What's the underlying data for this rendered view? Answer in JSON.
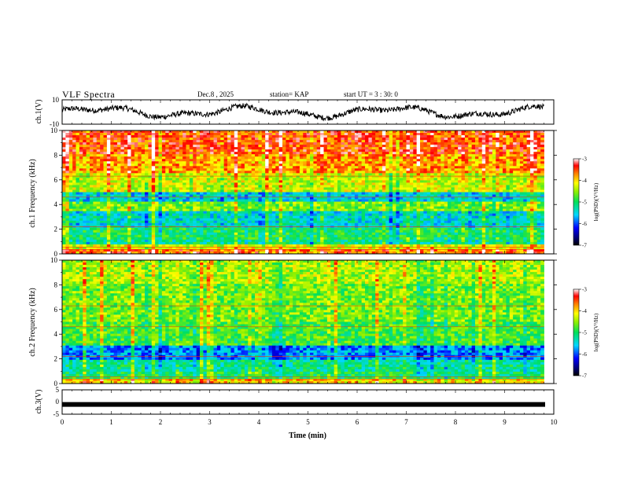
{
  "header": {
    "title": "VLF Spectra",
    "date": "Dec.8 , 2025",
    "station": "station= KAP",
    "start_ut": "start UT = 3 : 30: 0"
  },
  "chart_data": [
    {
      "type": "line",
      "name": "ch1-waveform",
      "ylabel": "ch.1(V)",
      "ylim": [
        -10,
        10
      ],
      "yticks": [
        "10",
        "-10"
      ],
      "xlim": [
        0,
        10
      ],
      "description_series": "noisy waveform around 0 V"
    },
    {
      "type": "heatmap",
      "name": "ch1-spectrogram",
      "ylabel": "ch.1 Frequency (kHz)",
      "ylim": [
        0,
        10
      ],
      "yticks": [
        "0",
        "2",
        "4",
        "6",
        "8",
        "10"
      ],
      "xlim": [
        0,
        9.8
      ],
      "colorbar": {
        "label": "log(PSD)(V²/Hz)",
        "ticks": [
          "-3",
          "-4",
          "-5",
          "-6",
          "-7"
        ],
        "range": [
          -7,
          -3
        ]
      },
      "bands": [
        {
          "from": 0.0,
          "to": 0.3,
          "level": -3.6
        },
        {
          "from": 0.3,
          "to": 0.7,
          "level": -4.2
        },
        {
          "from": 0.7,
          "to": 1.2,
          "level": -5.2
        },
        {
          "from": 1.2,
          "to": 2.2,
          "level": -5.0
        },
        {
          "from": 2.2,
          "to": 3.5,
          "level": -5.4
        },
        {
          "from": 3.5,
          "to": 4.2,
          "level": -4.6
        },
        {
          "from": 4.2,
          "to": 5.0,
          "level": -5.5
        },
        {
          "from": 5.0,
          "to": 6.5,
          "level": -4.3
        },
        {
          "from": 6.5,
          "to": 8.0,
          "level": -3.8
        },
        {
          "from": 8.0,
          "to": 10.0,
          "level": -3.5
        }
      ]
    },
    {
      "type": "heatmap",
      "name": "ch2-spectrogram",
      "ylabel": "ch.2 Frequency (kHz)",
      "ylim": [
        0,
        10
      ],
      "yticks": [
        "0",
        "2",
        "4",
        "6",
        "8",
        "10"
      ],
      "xlim": [
        0,
        9.8
      ],
      "colorbar": {
        "label": "log(PSD)(V²/Hz)",
        "ticks": [
          "-3",
          "-4",
          "-5",
          "-6",
          "-7"
        ],
        "range": [
          -7,
          -3
        ]
      },
      "bands": [
        {
          "from": 0.0,
          "to": 0.4,
          "level": -4.0
        },
        {
          "from": 0.4,
          "to": 1.0,
          "level": -5.0
        },
        {
          "from": 1.0,
          "to": 2.0,
          "level": -5.2
        },
        {
          "from": 2.0,
          "to": 3.0,
          "level": -5.8
        },
        {
          "from": 3.0,
          "to": 5.0,
          "level": -4.8
        },
        {
          "from": 5.0,
          "to": 8.0,
          "level": -4.6
        },
        {
          "from": 8.0,
          "to": 10.0,
          "level": -4.4
        }
      ]
    },
    {
      "type": "line",
      "name": "ch3-waveform",
      "ylabel": "ch.3(V)",
      "ylim": [
        -5,
        5
      ],
      "yticks": [
        "5",
        "0",
        "-5"
      ],
      "xlim": [
        0,
        10
      ],
      "level": -1,
      "xlabel": "Time (min)",
      "xticks": [
        "0",
        "1",
        "2",
        "3",
        "4",
        "5",
        "6",
        "7",
        "8",
        "9",
        "10"
      ]
    }
  ],
  "colors": {
    "axis": "#000000",
    "trace": "#000000",
    "background": "#ffffff"
  }
}
